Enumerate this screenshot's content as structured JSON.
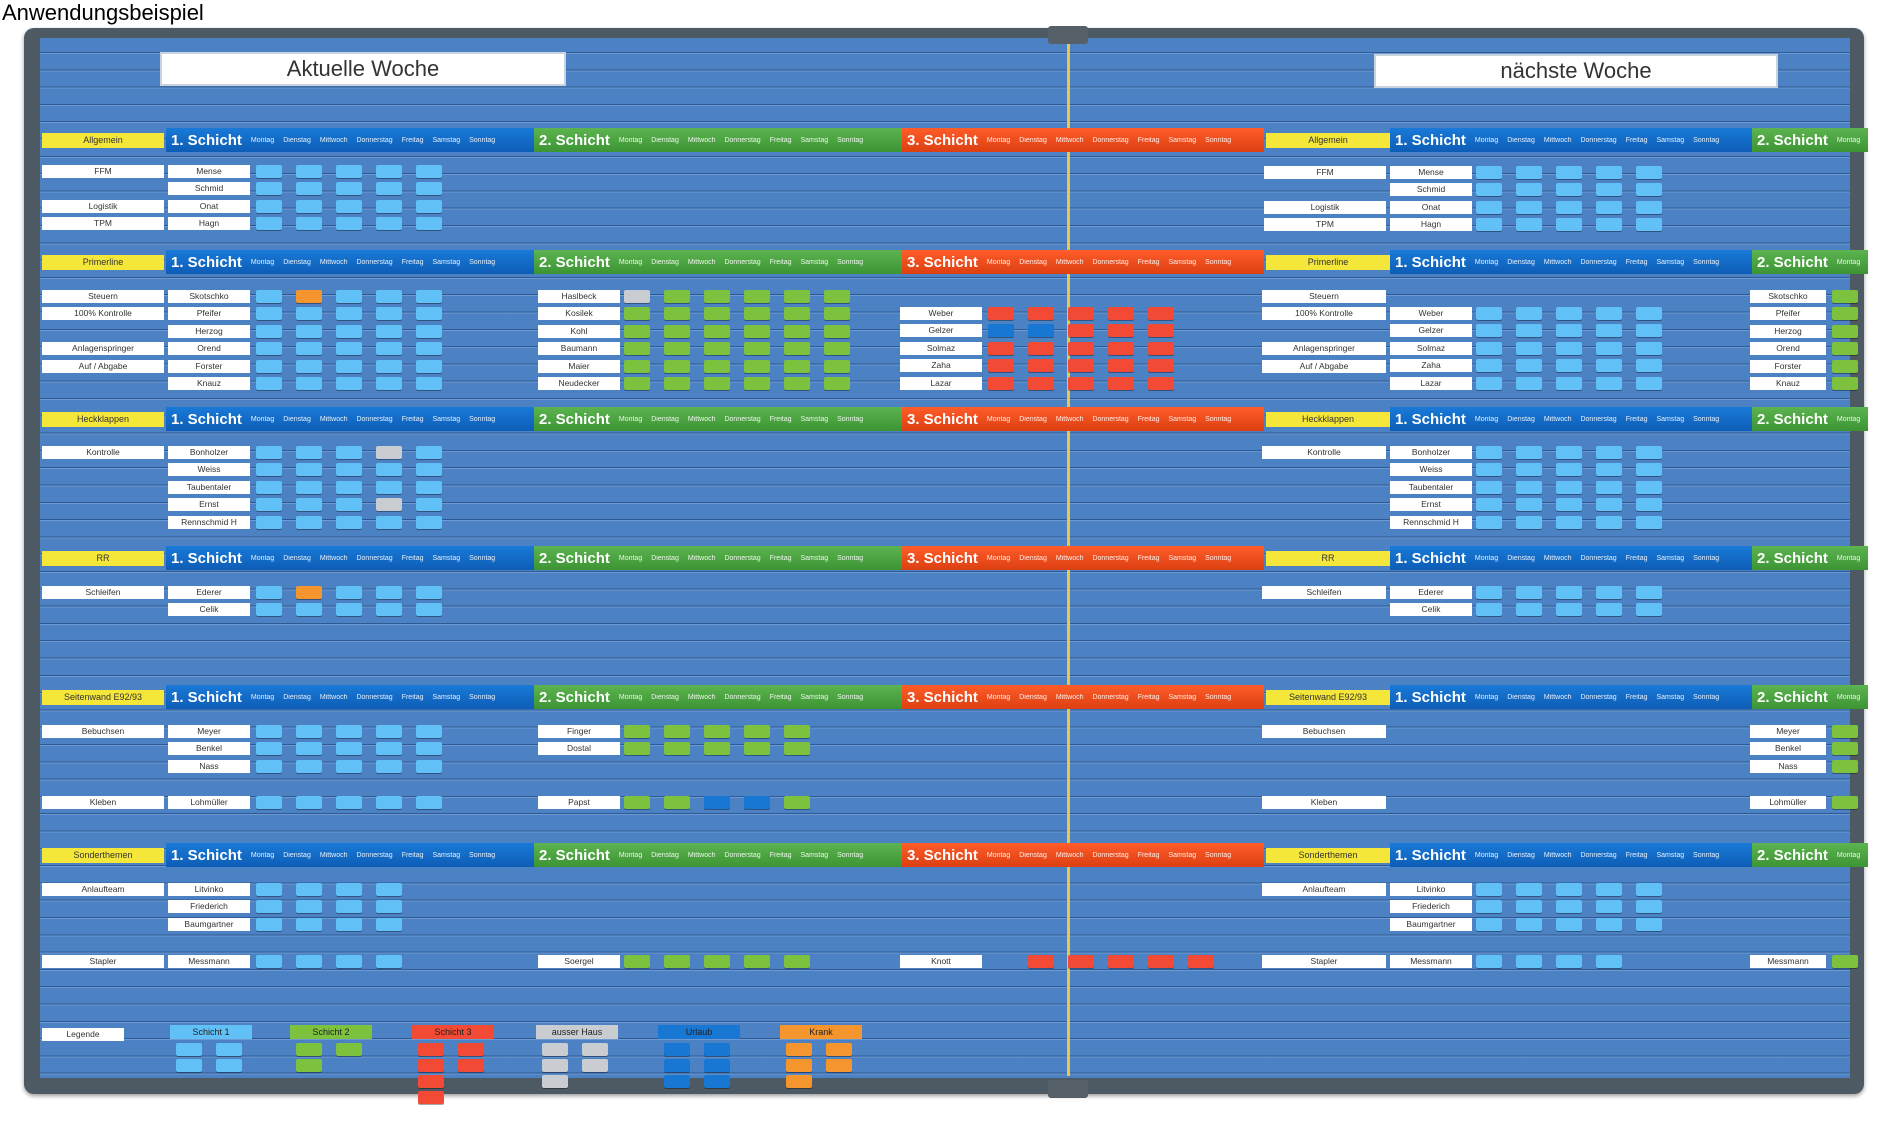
{
  "caption": "Anwendungsbeispiel",
  "week_titles": {
    "current": "Aktuelle Woche",
    "next": "nächste Woche"
  },
  "shift_names": {
    "s1": "1. Schicht",
    "s2": "2. Schicht",
    "s3": "3. Schicht"
  },
  "days": [
    "Montag",
    "Dienstag",
    "Mittwoch",
    "Donnerstag",
    "Freitag",
    "Samstag",
    "Sonntag"
  ],
  "categories": [
    "Allgemein",
    "Primerline",
    "Heckklappen",
    "RR",
    "Seitenwand E92/93",
    "Sonderthemen"
  ],
  "sections": {
    "allgemein": {
      "roles": [
        "FFM",
        "",
        "Logistik",
        "TPM"
      ],
      "s1_names": [
        "Mense",
        "Schmid",
        "Onat",
        "Hagn"
      ]
    },
    "primerline": {
      "roles": [
        "Steuern",
        "100% Kontrolle",
        "",
        "Anlagenspringer",
        "Auf / Abgabe",
        ""
      ],
      "s1_names": [
        "Skotschko",
        "Pfeifer",
        "Herzog",
        "Orend",
        "Forster",
        "Knauz"
      ],
      "s2_names": [
        "Haslbeck",
        "Kosilek",
        "Kohl",
        "Baumann",
        "Maier",
        "Neudecker"
      ],
      "s3_names": [
        "Weber",
        "Gelzer",
        "Solmaz",
        "Zaha",
        "Lazar"
      ]
    },
    "heckklappen": {
      "roles": [
        "Kontrolle"
      ],
      "s1_names": [
        "Bonholzer",
        "Weiss",
        "Taubentaler",
        "Ernst",
        "Rennschmid H"
      ]
    },
    "rr": {
      "roles": [
        "Schleifen"
      ],
      "s1_names": [
        "Ederer",
        "Celik"
      ]
    },
    "seitenwand": {
      "roles": [
        "Bebuchsen",
        "Kleben"
      ],
      "s1_names": [
        "Meyer",
        "Benkel",
        "Nass",
        "Lohmüller"
      ],
      "s2_names": [
        "Finger",
        "Dostal",
        "Papst"
      ]
    },
    "sonderthemen": {
      "roles": [
        "Anlaufteam",
        "Stapler"
      ],
      "s1_names": [
        "Litvinko",
        "Friederich",
        "Baumgartner",
        "Messmann"
      ],
      "s2_names": [
        "Soergel"
      ],
      "s3_names": [
        "Knott"
      ]
    }
  },
  "legend": {
    "label": "Legende",
    "items": [
      "Schicht 1",
      "Schicht 2",
      "Schicht 3",
      "ausser Haus",
      "Urlaub",
      "Krank"
    ]
  },
  "colors": {
    "shift1": "#0d5db6",
    "shift2": "#3d9433",
    "shift3": "#dc3f12",
    "category": "#f5e73a",
    "board": "#4c82c4"
  }
}
